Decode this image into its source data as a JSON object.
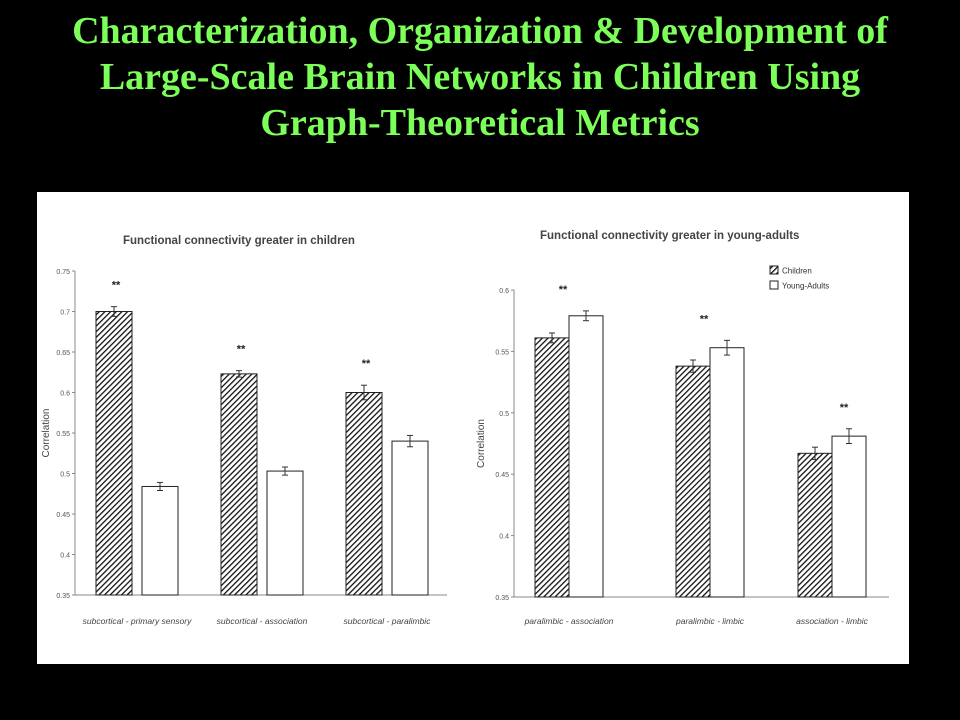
{
  "slide": {
    "title_lines": [
      "Characterization, Organization & Development of",
      "Large-Scale Brain Networks in Children Using",
      "Graph-Theoretical Metrics"
    ]
  },
  "colors": {
    "title": "#7dff5a",
    "background": "#000000",
    "figure_bg": "#ffffff",
    "bar_stroke": "#222222"
  },
  "chart_data": [
    {
      "type": "bar",
      "title": "Functional connectivity greater in children",
      "xlabel": "",
      "ylabel": "Correlation",
      "ylim": [
        0.35,
        0.75
      ],
      "yticks": [
        "0.35",
        "0.4",
        "0.45",
        "0.5",
        "0.55",
        "0.6",
        "0.65",
        "0.7",
        "0.75"
      ],
      "categories": [
        "subcortical - primary sensory",
        "subcortical - association",
        "subcortical - paralimbic"
      ],
      "series": [
        {
          "pattern": "hatched",
          "values": [
            0.7,
            0.623,
            0.6
          ],
          "errors": [
            0.006,
            0.004,
            0.009
          ]
        },
        {
          "pattern": "white",
          "values": [
            0.484,
            0.503,
            0.54
          ],
          "errors": [
            0.005,
            0.005,
            0.007
          ]
        }
      ],
      "annotations": [
        "**",
        "**",
        "**"
      ],
      "legend": null
    },
    {
      "type": "bar",
      "title": "Functional connectivity greater in young-adults",
      "xlabel": "",
      "ylabel": "Correlation",
      "ylim": [
        0.35,
        0.6
      ],
      "yticks": [
        "0.35",
        "0.4",
        "0.45",
        "0.5",
        "0.55",
        "0.6"
      ],
      "categories": [
        "paralimbic - association",
        "paralimbic - limbic",
        "association - limbic"
      ],
      "series": [
        {
          "name": "Children",
          "pattern": "hatched",
          "values": [
            0.561,
            0.538,
            0.467
          ],
          "errors": [
            0.004,
            0.005,
            0.005
          ]
        },
        {
          "name": "Young-Adults",
          "pattern": "white",
          "values": [
            0.579,
            0.553,
            0.481
          ],
          "errors": [
            0.004,
            0.006,
            0.006
          ]
        }
      ],
      "annotations": [
        "**",
        "**",
        "**"
      ],
      "legend": "top-right"
    }
  ]
}
